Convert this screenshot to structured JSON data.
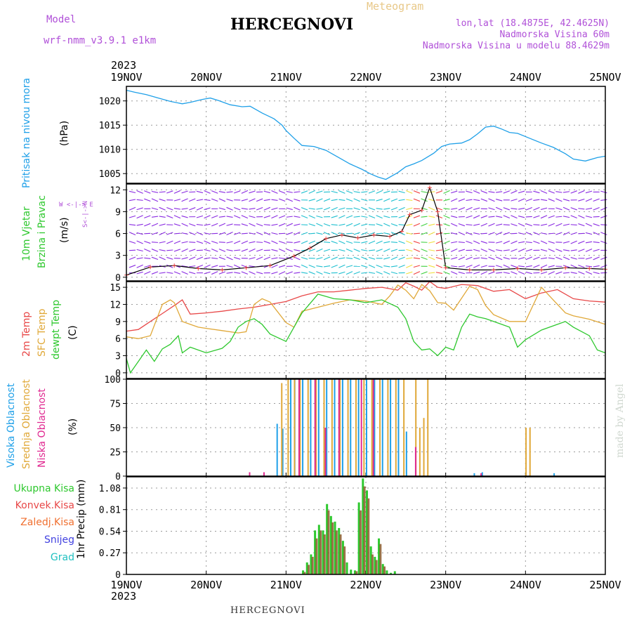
{
  "colors": {
    "pressure": "#1fa0e8",
    "wind_purple": "#8a2be2",
    "wind_cyan": "#20c0d0",
    "wind_green": "#40d040",
    "wind_yellow": "#f0e040",
    "wind_red": "#f04040",
    "temp2m": "#e84848",
    "sfc": "#e0a838",
    "dewpt": "#2ec82e",
    "high_cloud": "#1fa0e8",
    "mid_cloud": "#e0a838",
    "low_cloud": "#e02890",
    "total_precip": "#2ec82e",
    "conv_precip": "#e84848",
    "frz_precip": "#f07030",
    "snow": "#4040e0",
    "hail": "#20c0c0",
    "model": "#b050d8",
    "title": "#000000"
  },
  "header": {
    "model_label": "Model",
    "model_name": "wrf-nmm_v3.9.1  e1km",
    "title": "HERCEGNOVI",
    "meteogram": "Meteogram",
    "lonlat": "lon,lat (18.4875E, 42.4625N)",
    "elevation": "Nadmorska Visina 60m",
    "model_elevation": "Nadmorska Visina u modelu 88.4629m",
    "year_top": "2023",
    "year_bottom": "2023",
    "footer_title": "HERCEGNOVI",
    "credit": "made by Angel"
  },
  "panel_labels": {
    "pressure": {
      "name": "Pritisak na nivou mora",
      "unit": "(hPa)"
    },
    "wind": {
      "name1": "10m Vjetar",
      "name2": "Brzina i Pravac",
      "unit": "(m/s)",
      "compass": "W <-|-> E",
      "compass2": "S<-|->N"
    },
    "temp": {
      "name1": "2m Temp",
      "name2": "SFC Temp",
      "name3": "dewpt Temp",
      "unit": "(C)"
    },
    "cloud": {
      "name1": "Visoka Oblacnost",
      "name2": "Srednja Oblacnost",
      "name3": "Niska Oblacnost",
      "unit": "(%)"
    },
    "precip": {
      "unit": "1hr Precip (mm)"
    }
  },
  "precip_legend": [
    "Ukupna Kisa",
    "Konvek.Kisa",
    "Zaledj.Kisa",
    "Snijeg",
    "Grad"
  ],
  "chart_data": [
    {
      "type": "line",
      "name": "pressure",
      "x_labels": [
        "19NOV",
        "20NOV",
        "21NOV",
        "22NOV",
        "23NOV",
        "24NOV",
        "25NOV"
      ],
      "x_range_days": [
        0,
        6
      ],
      "ylim": [
        1003,
        1023
      ],
      "yticks": [
        1005,
        1010,
        1015,
        1020
      ],
      "series": [
        {
          "x": [
            0,
            0.1,
            0.25,
            0.4,
            0.55,
            0.7,
            0.8,
            0.95,
            1.05,
            1.15,
            1.3,
            1.45,
            1.55,
            1.7,
            1.85,
            1.95,
            2.0,
            2.1,
            2.2,
            2.35,
            2.5,
            2.65,
            2.8,
            2.95,
            3.05,
            3.15,
            3.25,
            3.4,
            3.5,
            3.6,
            3.7,
            3.85,
            3.95,
            4.05,
            4.2,
            4.3,
            4.4,
            4.5,
            4.6,
            4.7,
            4.8,
            4.9,
            5.05,
            5.2,
            5.35,
            5.5,
            5.6,
            5.75,
            5.9,
            6.0
          ],
          "y": [
            1022.2,
            1021.8,
            1021.3,
            1020.6,
            1019.9,
            1019.4,
            1019.7,
            1020.3,
            1020.6,
            1020.1,
            1019.2,
            1018.8,
            1018.9,
            1017.5,
            1016.3,
            1015.0,
            1013.9,
            1012.3,
            1010.8,
            1010.6,
            1009.8,
            1008.4,
            1007.0,
            1005.9,
            1005.0,
            1004.3,
            1003.8,
            1005.2,
            1006.4,
            1007.0,
            1007.7,
            1009.2,
            1010.6,
            1011.1,
            1011.3,
            1012.0,
            1013.2,
            1014.6,
            1014.8,
            1014.2,
            1013.5,
            1013.3,
            1012.3,
            1011.3,
            1010.4,
            1009.1,
            1008.0,
            1007.6,
            1008.3,
            1008.6
          ]
        }
      ]
    },
    {
      "type": "line",
      "name": "wind_speed",
      "ylim": [
        -0.5,
        12.8
      ],
      "yticks": [
        0,
        3,
        6,
        9,
        12
      ],
      "series": [
        {
          "x": [
            0,
            0.3,
            0.6,
            0.9,
            1.2,
            1.5,
            1.8,
            2.1,
            2.3,
            2.5,
            2.7,
            2.9,
            3.1,
            3.3,
            3.45,
            3.55,
            3.7,
            3.8,
            3.9,
            4.0,
            4.3,
            4.6,
            4.9,
            5.2,
            5.5,
            5.8,
            6.0
          ],
          "y": [
            0.3,
            1.4,
            1.6,
            1.2,
            1.0,
            1.3,
            1.6,
            2.9,
            4.0,
            5.3,
            5.8,
            5.4,
            5.8,
            5.6,
            6.3,
            8.6,
            9.2,
            12.3,
            9.0,
            1.3,
            1.0,
            1.0,
            1.2,
            1.0,
            1.3,
            1.2,
            1.1
          ]
        }
      ]
    },
    {
      "type": "line",
      "name": "temperature",
      "ylim": [
        -1,
        16
      ],
      "yticks": [
        0,
        3,
        6,
        9,
        12,
        15
      ],
      "series": [
        {
          "name": "2m Temp",
          "x": [
            0,
            0.15,
            0.3,
            0.45,
            0.6,
            0.7,
            0.8,
            1.0,
            1.2,
            1.4,
            1.6,
            1.8,
            2.0,
            2.2,
            2.4,
            2.6,
            2.8,
            3.0,
            3.2,
            3.4,
            3.5,
            3.6,
            3.7,
            3.8,
            3.9,
            4.0,
            4.2,
            4.4,
            4.6,
            4.8,
            5.0,
            5.2,
            5.4,
            5.6,
            5.8,
            6.0
          ],
          "y": [
            7.3,
            7.6,
            9.0,
            10.4,
            11.8,
            12.8,
            10.3,
            10.5,
            10.8,
            11.2,
            11.5,
            12.0,
            12.5,
            13.5,
            14.2,
            14.2,
            14.5,
            14.8,
            15.0,
            14.5,
            15.8,
            15.2,
            14.5,
            16.0,
            15.0,
            14.8,
            15.5,
            15.3,
            14.3,
            14.6,
            13.0,
            14.0,
            14.6,
            13.0,
            12.6,
            12.4
          ]
        },
        {
          "name": "SFC Temp",
          "x": [
            0,
            0.15,
            0.3,
            0.45,
            0.55,
            0.6,
            0.7,
            0.8,
            0.9,
            1.0,
            1.2,
            1.4,
            1.5,
            1.6,
            1.7,
            1.8,
            2.0,
            2.1,
            2.2,
            2.4,
            2.6,
            2.8,
            3.0,
            3.2,
            3.3,
            3.4,
            3.5,
            3.6,
            3.7,
            3.8,
            3.9,
            4.0,
            4.1,
            4.3,
            4.4,
            4.5,
            4.6,
            4.8,
            5.0,
            5.2,
            5.3,
            5.5,
            5.6,
            5.8,
            6.0
          ],
          "y": [
            6.3,
            6.0,
            6.5,
            12.0,
            12.8,
            12.3,
            9.0,
            8.5,
            8.0,
            7.8,
            7.4,
            7.0,
            7.2,
            12.0,
            13.0,
            12.4,
            8.8,
            8.0,
            10.8,
            11.5,
            12.2,
            12.8,
            12.6,
            12.0,
            13.5,
            15.4,
            14.5,
            13.0,
            15.5,
            14.4,
            12.3,
            12.2,
            11.0,
            15.2,
            14.6,
            11.8,
            10.2,
            9.0,
            9.0,
            15.0,
            13.5,
            10.5,
            10.0,
            9.4,
            8.5
          ]
        },
        {
          "name": "dewpt Temp",
          "x": [
            0,
            0.05,
            0.15,
            0.25,
            0.35,
            0.45,
            0.55,
            0.65,
            0.7,
            0.8,
            1.0,
            1.2,
            1.3,
            1.4,
            1.5,
            1.6,
            1.7,
            1.8,
            2.0,
            2.2,
            2.4,
            2.6,
            2.8,
            3.0,
            3.2,
            3.4,
            3.5,
            3.6,
            3.7,
            3.8,
            3.9,
            4.0,
            4.1,
            4.2,
            4.3,
            4.4,
            4.5,
            4.6,
            4.8,
            4.9,
            5.0,
            5.2,
            5.4,
            5.5,
            5.6,
            5.8,
            5.9,
            6.0
          ],
          "y": [
            2.5,
            0,
            2.0,
            4.0,
            2.0,
            4.2,
            5.0,
            6.5,
            3.5,
            4.5,
            3.5,
            4.3,
            5.5,
            8.0,
            9.0,
            9.5,
            8.5,
            6.8,
            5.5,
            10.5,
            13.8,
            13.0,
            12.8,
            12.3,
            12.8,
            11.5,
            9.5,
            5.5,
            4.0,
            4.2,
            3.0,
            4.5,
            4.0,
            8.0,
            10.3,
            9.8,
            9.5,
            9.0,
            8.0,
            4.5,
            5.8,
            7.5,
            8.5,
            9.0,
            8.0,
            6.5,
            4.0,
            3.5
          ]
        }
      ]
    },
    {
      "type": "bar",
      "name": "cloud_cover",
      "ylim": [
        0,
        100
      ],
      "yticks": [
        0,
        25,
        50,
        75,
        100
      ],
      "high": {
        "x": [
          1.88,
          1.95,
          2.05,
          2.1,
          2.2,
          2.3,
          2.4,
          2.5,
          2.6,
          2.7,
          2.8,
          2.9,
          3.0,
          3.1,
          3.2,
          3.3,
          3.4,
          3.5,
          4.35,
          4.45,
          5.35
        ],
        "y": [
          54,
          49,
          100,
          100,
          100,
          100,
          100,
          100,
          100,
          100,
          100,
          100,
          100,
          100,
          100,
          100,
          100,
          46,
          3,
          4,
          3
        ]
      },
      "mid": {
        "x": [
          1.92,
          2.0,
          2.08,
          2.15,
          2.25,
          2.35,
          2.45,
          2.55,
          2.65,
          2.75,
          2.85,
          2.95,
          3.05,
          3.15,
          3.25,
          3.35,
          3.45,
          3.6,
          3.65,
          3.7,
          3.75,
          4.98,
          5.03
        ],
        "y": [
          96,
          100,
          100,
          100,
          100,
          100,
          100,
          100,
          100,
          100,
          100,
          100,
          100,
          100,
          100,
          100,
          100,
          100,
          50,
          60,
          100,
          50,
          50
        ]
      },
      "low": {
        "x": [
          1.5,
          1.68,
          2.12,
          2.32,
          2.45,
          2.62,
          2.9,
          3.05,
          3.58,
          4.4
        ],
        "y": [
          4,
          4,
          100,
          100,
          50,
          100,
          100,
          100,
          30,
          3
        ]
      }
    },
    {
      "type": "bar",
      "name": "precip",
      "ylim": [
        0,
        1.22
      ],
      "yticks": [
        0,
        0.27,
        0.54,
        0.81,
        1.08
      ],
      "total": {
        "x": [
          2.2,
          2.25,
          2.3,
          2.35,
          2.4,
          2.45,
          2.5,
          2.55,
          2.6,
          2.65,
          2.7,
          2.75,
          2.8,
          2.85,
          2.9,
          2.95,
          3.0,
          3.05,
          3.1,
          3.15,
          3.2,
          3.25,
          3.3,
          3.35
        ],
        "y": [
          0.05,
          0.15,
          0.25,
          0.55,
          0.62,
          0.55,
          0.88,
          0.73,
          0.66,
          0.58,
          0.42,
          0.15,
          0.06,
          0.05,
          0.9,
          1.2,
          1.05,
          0.35,
          0.22,
          0.45,
          0.13,
          0.05,
          0.02,
          0.04
        ]
      },
      "conv": {
        "x": [
          2.22,
          2.27,
          2.32,
          2.37,
          2.42,
          2.47,
          2.52,
          2.57,
          2.62,
          2.67,
          2.72,
          2.87,
          2.92,
          2.97,
          3.02,
          3.07,
          3.12,
          3.17,
          3.22
        ],
        "y": [
          0.03,
          0.12,
          0.22,
          0.45,
          0.55,
          0.5,
          0.8,
          0.65,
          0.55,
          0.5,
          0.35,
          0.04,
          0.8,
          1.1,
          0.95,
          0.25,
          0.18,
          0.38,
          0.1
        ]
      }
    }
  ]
}
